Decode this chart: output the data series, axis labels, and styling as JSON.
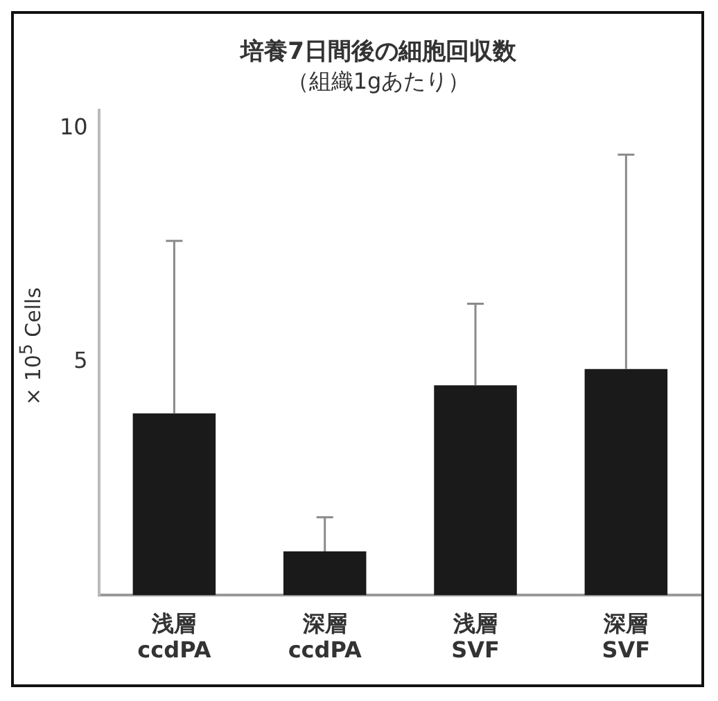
{
  "chart_data": {
    "type": "bar",
    "title": "培養7日間後の細胞回収数",
    "subtitle": "（組織1gあたり）",
    "ylabel": "× 10$^{5}$ Cells",
    "categories": [
      "浅層\nccdPA",
      "深層\nccdPA",
      "浅層\nSVF",
      "深層\nSVF"
    ],
    "values": [
      3.9,
      0.94,
      4.5,
      4.85
    ],
    "errors": [
      [
        3.9,
        7.6
      ],
      [
        0.94,
        1.67
      ],
      [
        4.5,
        6.25
      ],
      [
        4.85,
        9.45
      ]
    ],
    "color": "#1a1a1a",
    "ylim": [
      0,
      10.4
    ],
    "yticks": [
      5,
      10
    ],
    "grid": false,
    "legend": false
  }
}
